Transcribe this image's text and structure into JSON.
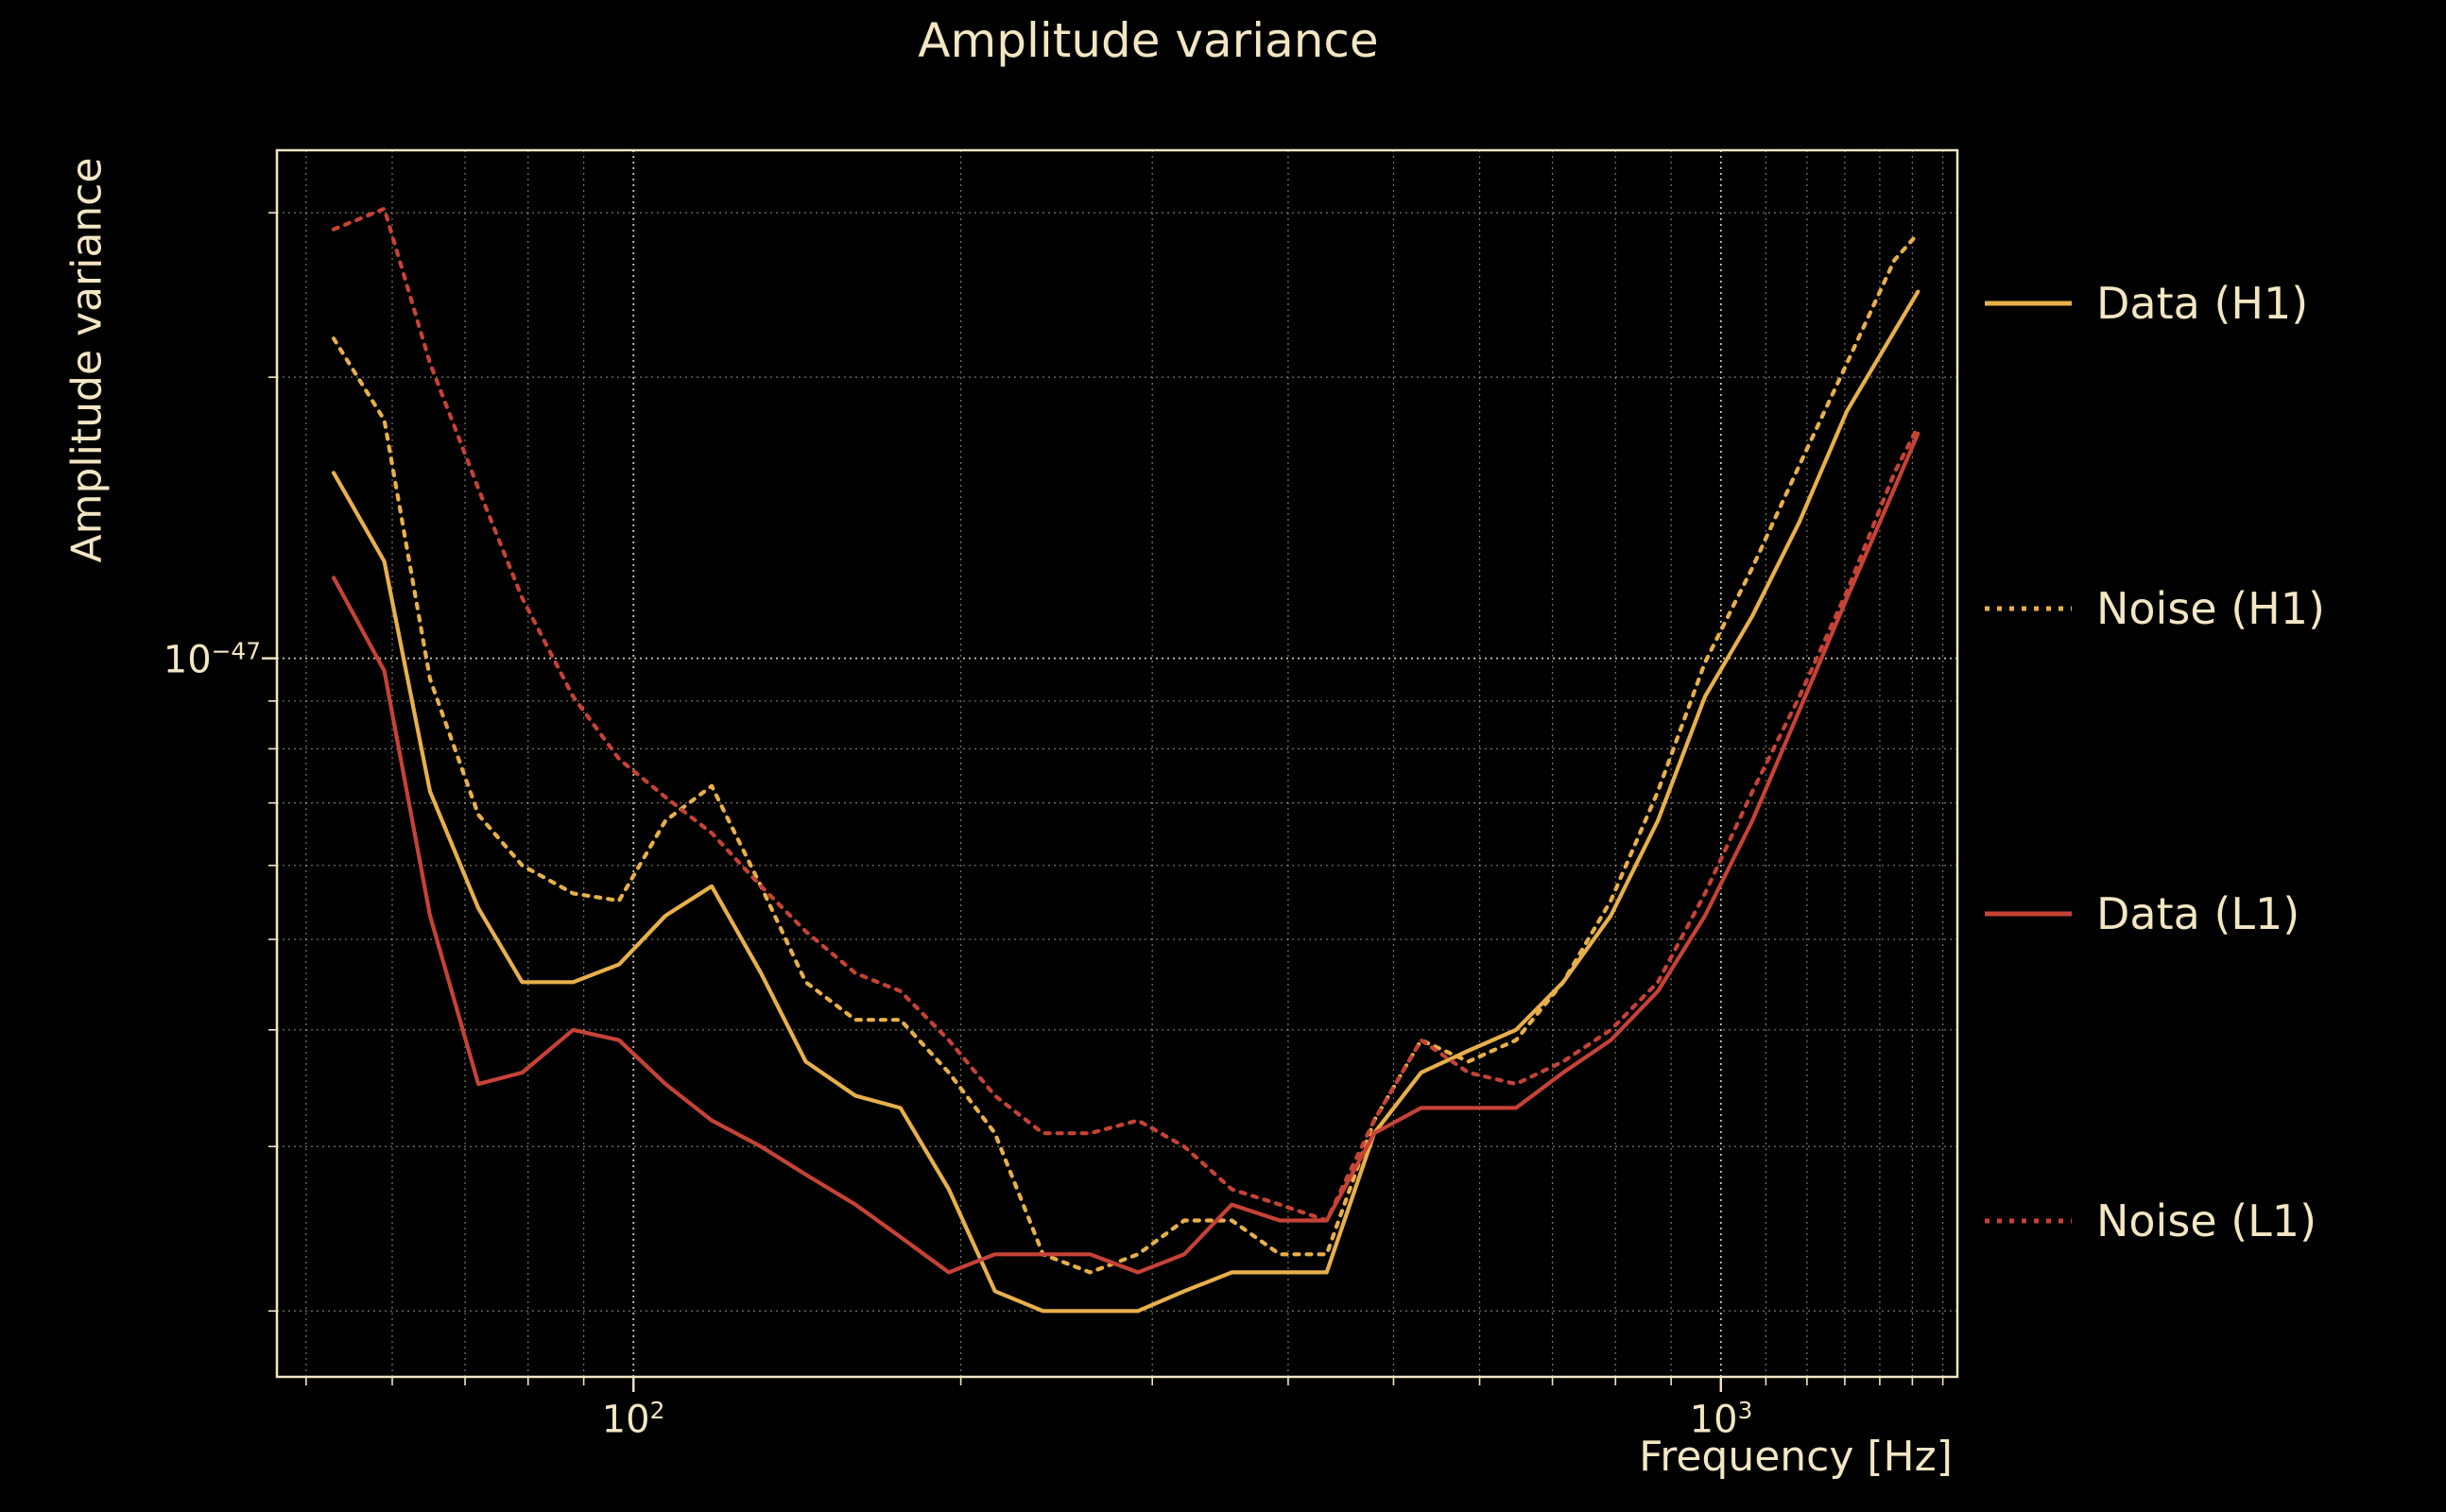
{
  "title": "Amplitude variance",
  "colors": {
    "background": "#000000",
    "text": "#f3e6c3",
    "gold": "#e7b04a",
    "red": "#c64237",
    "grid": "#f6ecd2",
    "frame": "#f3e6c3"
  },
  "axes": {
    "xlabel": "Frequency [Hz]",
    "ylabel": "Amplitude variance",
    "x_scale": "log",
    "y_scale": "log",
    "x_range_hz": [
      47,
      1650
    ],
    "y_range_1e48": [
      1.7,
      35
    ],
    "x_ticks": [
      {
        "base": "10",
        "exp": "2",
        "value": 100
      },
      {
        "base": "10",
        "exp": "3",
        "value": 1000
      }
    ],
    "y_ticks": [
      {
        "base": "10",
        "exp": "−47",
        "value": 10
      }
    ],
    "x_minor_gridlines_hz": [
      50,
      60,
      70,
      80,
      90,
      100,
      200,
      300,
      400,
      500,
      600,
      700,
      800,
      900,
      1000,
      1100,
      1200,
      1300,
      1400,
      1500,
      1600
    ],
    "y_minor_gridlines_1e48": [
      2,
      3,
      4,
      5,
      6,
      7,
      8,
      9,
      10,
      20,
      30
    ],
    "x_major_values": [
      100,
      1000
    ],
    "y_major_values": [
      10
    ]
  },
  "legend": [
    {
      "label": "Data (H1)",
      "color_key": "gold",
      "style": "solid"
    },
    {
      "label": "Noise (H1)",
      "color_key": "gold",
      "style": "dotted"
    },
    {
      "label": "Data (L1)",
      "color_key": "red",
      "style": "solid"
    },
    {
      "label": "Noise (L1)",
      "color_key": "red",
      "style": "dotted"
    }
  ],
  "chart_data": {
    "type": "line",
    "title": "Amplitude variance",
    "xlabel": "Frequency [Hz]",
    "ylabel": "Amplitude variance",
    "x_scale": "log",
    "y_scale": "log",
    "legend_position": "outside-right",
    "grid": true,
    "y_unit": "1e-48",
    "x_hz": [
      53,
      59,
      65,
      72,
      79,
      88,
      97,
      107,
      118,
      131,
      144,
      160,
      176,
      195,
      215,
      238,
      263,
      291,
      321,
      355,
      393,
      434,
      480,
      530,
      586,
      648,
      716,
      792,
      875,
      967,
      1069,
      1181,
      1306,
      1444,
      1518
    ],
    "series": [
      {
        "name": "Data (H1)",
        "style": "solid",
        "color": "#e7b04a",
        "values": [
          15.8,
          12.7,
          7.2,
          5.4,
          4.5,
          4.5,
          4.7,
          5.3,
          5.7,
          4.6,
          3.7,
          3.4,
          3.3,
          2.7,
          2.1,
          2.0,
          2.0,
          2.0,
          2.1,
          2.2,
          2.2,
          2.2,
          3.1,
          3.6,
          3.8,
          4.0,
          4.5,
          5.3,
          6.7,
          9.1,
          11.1,
          14.0,
          18.4,
          22.4,
          24.7
        ]
      },
      {
        "name": "Noise (H1)",
        "style": "dotted",
        "color": "#e7b04a",
        "values": [
          22.0,
          18.0,
          9.5,
          6.8,
          6.0,
          5.6,
          5.5,
          6.7,
          7.3,
          5.7,
          4.5,
          4.1,
          4.1,
          3.6,
          3.1,
          2.3,
          2.2,
          2.3,
          2.5,
          2.5,
          2.3,
          2.3,
          3.2,
          3.9,
          3.7,
          3.9,
          4.5,
          5.5,
          7.2,
          9.9,
          12.5,
          16.1,
          20.7,
          26.7,
          28.5
        ]
      },
      {
        "name": "Data (L1)",
        "style": "solid",
        "color": "#c64237",
        "values": [
          12.2,
          9.7,
          5.3,
          3.5,
          3.6,
          4.0,
          3.9,
          3.5,
          3.2,
          3.0,
          2.8,
          2.6,
          2.4,
          2.2,
          2.3,
          2.3,
          2.3,
          2.2,
          2.3,
          2.6,
          2.5,
          2.5,
          3.1,
          3.3,
          3.3,
          3.3,
          3.6,
          3.9,
          4.4,
          5.3,
          6.7,
          8.8,
          11.6,
          15.2,
          17.4
        ]
      },
      {
        "name": "Noise (L1)",
        "style": "dotted",
        "color": "#c64237",
        "values": [
          28.8,
          30.3,
          20.7,
          15.2,
          11.6,
          9.1,
          7.8,
          7.1,
          6.5,
          5.7,
          5.1,
          4.6,
          4.4,
          3.9,
          3.4,
          3.1,
          3.1,
          3.2,
          3.0,
          2.7,
          2.6,
          2.5,
          3.2,
          3.9,
          3.6,
          3.5,
          3.7,
          4.0,
          4.5,
          5.6,
          7.2,
          9.1,
          11.8,
          15.8,
          17.7
        ]
      }
    ]
  }
}
